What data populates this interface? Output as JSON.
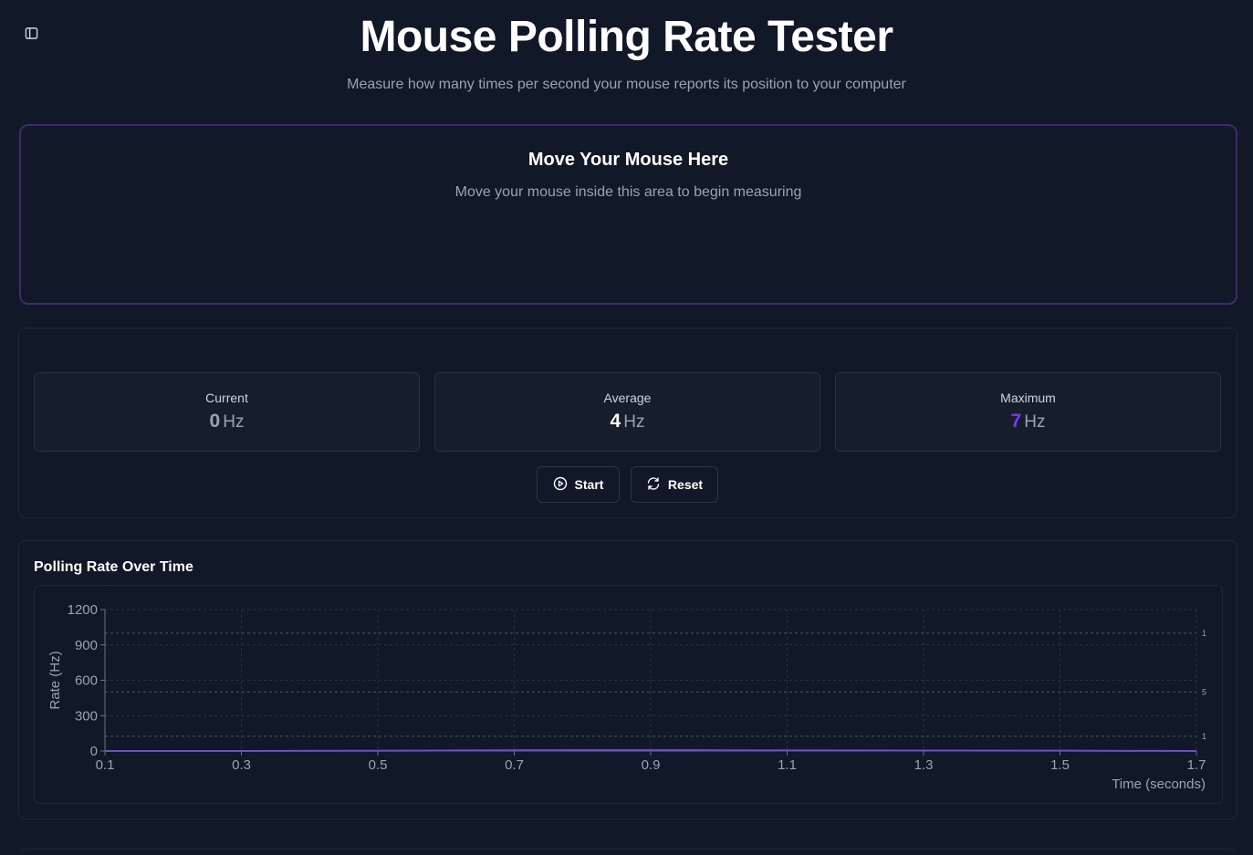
{
  "header": {
    "title": "Mouse Polling Rate Tester",
    "subtitle": "Measure how many times per second your mouse reports its position to your computer"
  },
  "test_area": {
    "title": "Move Your Mouse Here",
    "hint": "Move your mouse inside this area to begin measuring"
  },
  "stats": [
    {
      "label": "Current",
      "value": "0",
      "unit": "Hz",
      "color": "#9ca3af"
    },
    {
      "label": "Average",
      "value": "4",
      "unit": "Hz",
      "color": "#ffffff"
    },
    {
      "label": "Maximum",
      "value": "7",
      "unit": "Hz",
      "color": "#7c3aed"
    }
  ],
  "buttons": {
    "start_label": "Start",
    "reset_label": "Reset"
  },
  "icons": {
    "sidebar": "sidebar-panel-icon",
    "start": "play-circle-icon",
    "reset": "refresh-icon"
  },
  "colors": {
    "accent": "#7c3aed",
    "background": "#111827",
    "line": "#6d4fd1"
  },
  "chart_data": {
    "type": "line",
    "title": "Polling Rate Over Time",
    "xlabel": "Time (seconds)",
    "ylabel": "Rate (Hz)",
    "xlim": [
      0.1,
      1.7
    ],
    "ylim": [
      0,
      1200
    ],
    "x_ticks": [
      "0.1",
      "0.3",
      "0.5",
      "0.7",
      "0.9",
      "1.1",
      "1.3",
      "1.5",
      "1.7"
    ],
    "y_ticks": [
      "0",
      "300",
      "600",
      "900",
      "1200"
    ],
    "grid": true,
    "reference_lines": [
      {
        "y": 1000,
        "label": "1"
      },
      {
        "y": 500,
        "label": "5"
      },
      {
        "y": 125,
        "label": "1"
      }
    ],
    "series": [
      {
        "x": [
          0.1,
          0.3,
          0.5,
          0.6,
          0.7,
          0.8,
          0.9,
          1.0,
          1.1,
          1.3,
          1.5,
          1.6,
          1.7
        ],
        "y": [
          0,
          0,
          2,
          4,
          6,
          7,
          7,
          6,
          5,
          4,
          3,
          1,
          0
        ]
      }
    ]
  }
}
